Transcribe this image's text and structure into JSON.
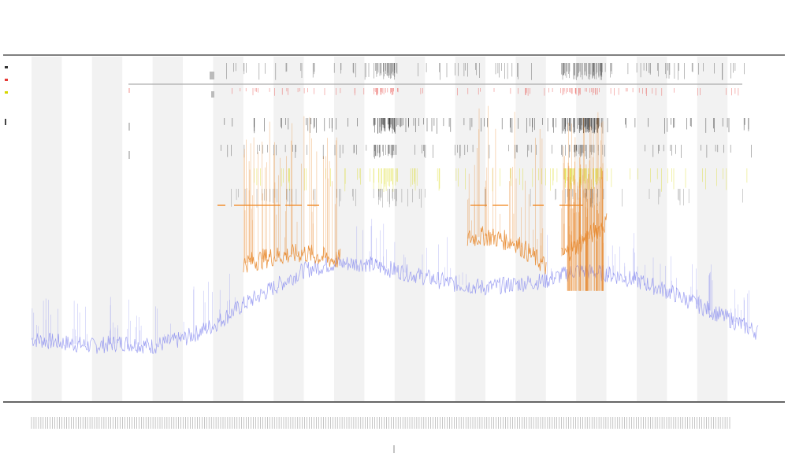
{
  "header": {
    "title": "",
    "subtitle1": "",
    "subtitle2": ""
  },
  "colors": {
    "background_band": "#f2f2f2",
    "baseline_series": "#8c8ff0",
    "active_series": "#e8892f",
    "marker_red": "#e53935",
    "marker_black": "#333333",
    "marker_yellow": "#d6d600",
    "marker_orange": "#f28c28",
    "frame": "#555555"
  },
  "chart_data": {
    "type": "line",
    "title": "",
    "xlabel": "",
    "ylabel": "",
    "grid": false,
    "legend_placement": "top-left",
    "background_bands": 12,
    "series": [
      {
        "name": "",
        "color": "#8c8ff0",
        "x": [
          0,
          1,
          2,
          3,
          4,
          5,
          6,
          7,
          8,
          9,
          10,
          11,
          12,
          13,
          14,
          15,
          16,
          17,
          18,
          19,
          20,
          21,
          22,
          23,
          24
        ],
        "values": [
          0.18,
          0.17,
          0.16,
          0.17,
          0.16,
          0.18,
          0.22,
          0.28,
          0.33,
          0.38,
          0.4,
          0.4,
          0.38,
          0.36,
          0.34,
          0.33,
          0.34,
          0.35,
          0.38,
          0.37,
          0.35,
          0.32,
          0.28,
          0.24,
          0.2
        ]
      },
      {
        "name": "",
        "color": "#e8892f",
        "x": [
          7,
          8,
          9,
          10,
          15,
          16,
          17,
          18,
          19
        ],
        "values": [
          0.4,
          0.42,
          0.43,
          0.41,
          0.48,
          0.46,
          0.39,
          0.45,
          0.52
        ]
      }
    ]
  }
}
